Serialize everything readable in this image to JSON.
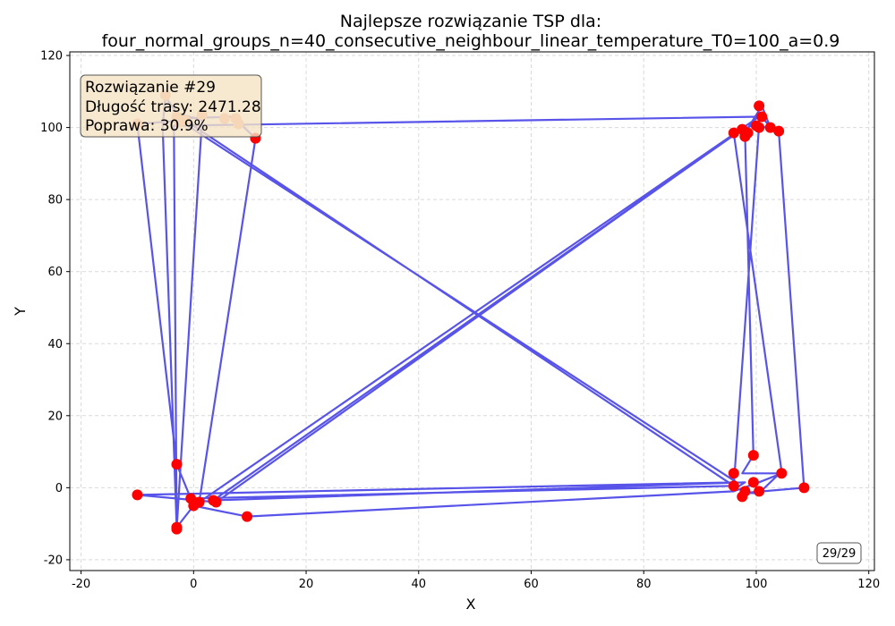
{
  "chart_data": {
    "type": "scatter",
    "title_line1": "Najlepsze rozwiązanie TSP dla:",
    "title_line2": "four_normal_groups_n=40_consecutive_neighbour_linear_temperature_T0=100_a=0.9",
    "xlabel": "X",
    "ylabel": "Y",
    "xlim": [
      -22,
      121
    ],
    "ylim": [
      -23,
      121
    ],
    "xticks": [
      -20,
      0,
      20,
      40,
      60,
      80,
      100,
      120
    ],
    "yticks": [
      -20,
      0,
      20,
      40,
      60,
      80,
      100,
      120
    ],
    "grid": true,
    "route_color": "#4a45e8",
    "point_color": "#ff0000",
    "route": [
      [
        -3.0,
        -11.5
      ],
      [
        1.5,
        102.0
      ],
      [
        -3.0,
        104.0
      ],
      [
        -5.0,
        108.5
      ],
      [
        -5.5,
        100.5
      ],
      [
        -3.0,
        -11.0
      ],
      [
        0.0,
        -5.0
      ],
      [
        9.5,
        -8.0
      ],
      [
        96.0,
        -1.0
      ],
      [
        100.5,
        1.5
      ],
      [
        104.5,
        4.0
      ],
      [
        97.5,
        4.0
      ],
      [
        99.5,
        9.0
      ],
      [
        98.0,
        98.5
      ],
      [
        101.0,
        106.0
      ],
      [
        102.5,
        100.0
      ],
      [
        101.0,
        103.0
      ],
      [
        100.0,
        101.0
      ],
      [
        96.0,
        98.5
      ],
      [
        104.5,
        4.5
      ],
      [
        100.5,
        -1.5
      ],
      [
        97.5,
        -1.5
      ],
      [
        108.5,
        0.0
      ],
      [
        104.0,
        99.0
      ],
      [
        100.5,
        100.5
      ],
      [
        96.0,
        0.5
      ],
      [
        -0.5,
        -3.0
      ],
      [
        -3.0,
        6.5
      ],
      [
        -10.0,
        101.0
      ],
      [
        -1.5,
        102.0
      ],
      [
        96.5,
        0.0
      ],
      [
        98.0,
        1.5
      ],
      [
        3.5,
        -3.5
      ],
      [
        97.5,
        99.5
      ],
      [
        96.5,
        98.5
      ],
      [
        4.0,
        -4.0
      ],
      [
        -10.0,
        -2.0
      ],
      [
        96.5,
        1.5
      ],
      [
        -3.0,
        102.5
      ],
      [
        7.0,
        103.0
      ],
      [
        11.0,
        97.0
      ],
      [
        1.0,
        -4.0
      ],
      [
        100.5,
        103.0
      ],
      [
        -3.5,
        100.5
      ],
      [
        -3.0,
        -11.5
      ]
    ],
    "points": [
      [
        -3.0,
        -11.5
      ],
      [
        -3.0,
        -11.0
      ],
      [
        0.0,
        -5.0
      ],
      [
        1.0,
        -4.0
      ],
      [
        -0.5,
        -3.0
      ],
      [
        4.0,
        -4.0
      ],
      [
        3.5,
        -3.5
      ],
      [
        9.5,
        -8.0
      ],
      [
        -10.0,
        -2.0
      ],
      [
        -3.0,
        6.5
      ],
      [
        11.0,
        97.0
      ],
      [
        96.0,
        0.5
      ],
      [
        96.0,
        4.0
      ],
      [
        97.5,
        -2.5
      ],
      [
        98.0,
        -1.0
      ],
      [
        99.5,
        1.5
      ],
      [
        100.5,
        -1.0
      ],
      [
        99.5,
        9.0
      ],
      [
        104.5,
        4.0
      ],
      [
        108.5,
        0.0
      ],
      [
        96.0,
        98.5
      ],
      [
        97.5,
        99.5
      ],
      [
        98.0,
        97.5
      ],
      [
        98.5,
        98.5
      ],
      [
        100.0,
        100.5
      ],
      [
        100.5,
        100.0
      ],
      [
        101.0,
        103.0
      ],
      [
        100.5,
        106.0
      ],
      [
        102.5,
        100.0
      ],
      [
        104.0,
        99.0
      ]
    ],
    "faded_points": [
      [
        -5.0,
        109.0
      ],
      [
        -3.0,
        103.0
      ],
      [
        -2.5,
        101.5
      ],
      [
        -10.0,
        101.0
      ],
      [
        -1.5,
        102.0
      ],
      [
        1.5,
        103.5
      ],
      [
        5.5,
        102.5
      ],
      [
        7.5,
        102.5
      ],
      [
        8.0,
        101.0
      ]
    ],
    "faded_point_color": "#f5a080",
    "info_box": {
      "line1": "Rozwiązanie #29",
      "line2": "Długość trasy: 2471.28",
      "line3": "Poprawa: 30.9%",
      "background": "#f5e3c4"
    },
    "counter": "29/29"
  }
}
